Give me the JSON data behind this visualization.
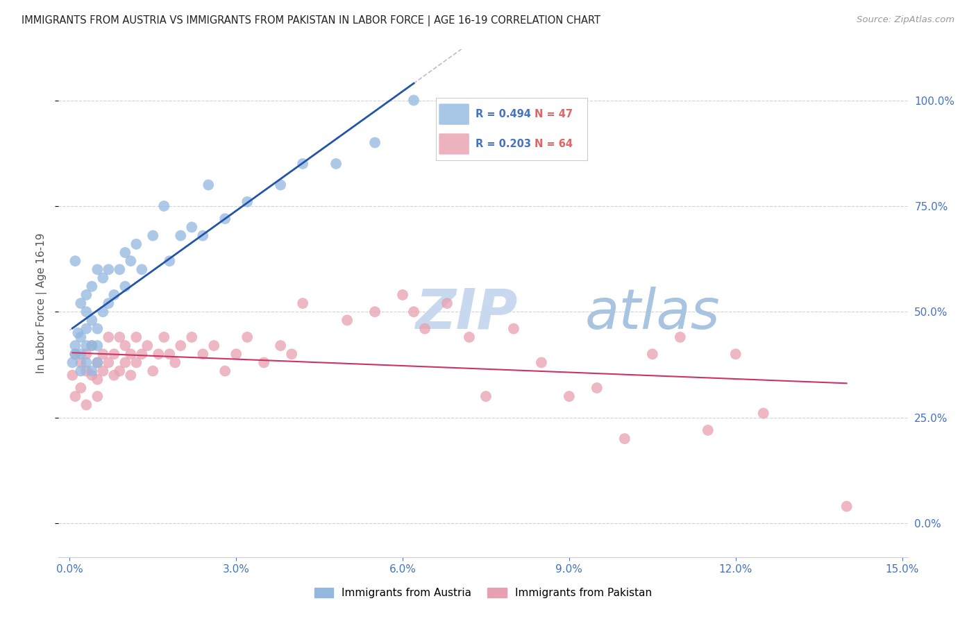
{
  "title": "IMMIGRANTS FROM AUSTRIA VS IMMIGRANTS FROM PAKISTAN IN LABOR FORCE | AGE 16-19 CORRELATION CHART",
  "source": "Source: ZipAtlas.com",
  "ylabel": "In Labor Force | Age 16-19",
  "xlim": [
    -0.002,
    0.151
  ],
  "ylim": [
    -0.08,
    1.12
  ],
  "xticks": [
    0.0,
    0.03,
    0.06,
    0.09,
    0.12,
    0.15
  ],
  "xtick_labels": [
    "0.0%",
    "3.0%",
    "6.0%",
    "9.0%",
    "12.0%",
    "15.0%"
  ],
  "yticks": [
    0.0,
    0.25,
    0.5,
    0.75,
    1.0
  ],
  "ytick_labels": [
    "0.0%",
    "25.0%",
    "50.0%",
    "75.0%",
    "100.0%"
  ],
  "austria_color": "#92b8e0",
  "pakistan_color": "#e8a0b0",
  "austria_label": "Immigrants from Austria",
  "pakistan_label": "Immigrants from Pakistan",
  "austria_R": 0.494,
  "austria_N": 47,
  "pakistan_R": 0.203,
  "pakistan_N": 64,
  "legend_color": "#4472c4",
  "legend_N_color": "#e06666",
  "austria_scatter_x": [
    0.0005,
    0.001,
    0.001,
    0.001,
    0.0015,
    0.002,
    0.002,
    0.002,
    0.002,
    0.003,
    0.003,
    0.003,
    0.003,
    0.003,
    0.004,
    0.004,
    0.004,
    0.004,
    0.005,
    0.005,
    0.005,
    0.005,
    0.006,
    0.006,
    0.007,
    0.007,
    0.008,
    0.009,
    0.01,
    0.01,
    0.011,
    0.012,
    0.013,
    0.015,
    0.017,
    0.018,
    0.02,
    0.022,
    0.024,
    0.025,
    0.028,
    0.032,
    0.038,
    0.042,
    0.048,
    0.055,
    0.062
  ],
  "austria_scatter_y": [
    0.38,
    0.4,
    0.42,
    0.62,
    0.45,
    0.36,
    0.4,
    0.44,
    0.52,
    0.38,
    0.42,
    0.46,
    0.5,
    0.54,
    0.36,
    0.42,
    0.48,
    0.56,
    0.38,
    0.42,
    0.46,
    0.6,
    0.5,
    0.58,
    0.52,
    0.6,
    0.54,
    0.6,
    0.56,
    0.64,
    0.62,
    0.66,
    0.6,
    0.68,
    0.75,
    0.62,
    0.68,
    0.7,
    0.68,
    0.8,
    0.72,
    0.76,
    0.8,
    0.85,
    0.85,
    0.9,
    1.0
  ],
  "pakistan_scatter_x": [
    0.0005,
    0.001,
    0.001,
    0.002,
    0.002,
    0.003,
    0.003,
    0.003,
    0.004,
    0.004,
    0.005,
    0.005,
    0.005,
    0.006,
    0.006,
    0.007,
    0.007,
    0.008,
    0.008,
    0.009,
    0.009,
    0.01,
    0.01,
    0.011,
    0.011,
    0.012,
    0.012,
    0.013,
    0.014,
    0.015,
    0.016,
    0.017,
    0.018,
    0.019,
    0.02,
    0.022,
    0.024,
    0.026,
    0.028,
    0.03,
    0.032,
    0.035,
    0.038,
    0.04,
    0.042,
    0.05,
    0.055,
    0.06,
    0.062,
    0.064,
    0.068,
    0.072,
    0.075,
    0.08,
    0.085,
    0.09,
    0.095,
    0.1,
    0.105,
    0.11,
    0.115,
    0.12,
    0.125,
    0.14
  ],
  "pakistan_scatter_y": [
    0.35,
    0.3,
    0.4,
    0.38,
    0.32,
    0.36,
    0.4,
    0.28,
    0.35,
    0.42,
    0.38,
    0.34,
    0.3,
    0.36,
    0.4,
    0.38,
    0.44,
    0.35,
    0.4,
    0.36,
    0.44,
    0.38,
    0.42,
    0.35,
    0.4,
    0.38,
    0.44,
    0.4,
    0.42,
    0.36,
    0.4,
    0.44,
    0.4,
    0.38,
    0.42,
    0.44,
    0.4,
    0.42,
    0.36,
    0.4,
    0.44,
    0.38,
    0.42,
    0.4,
    0.52,
    0.48,
    0.5,
    0.54,
    0.5,
    0.46,
    0.52,
    0.44,
    0.3,
    0.46,
    0.38,
    0.3,
    0.32,
    0.2,
    0.4,
    0.44,
    0.22,
    0.4,
    0.26,
    0.04
  ],
  "background_color": "#ffffff",
  "grid_color": "#cccccc",
  "tick_color": "#4472c4",
  "watermark_zip": "ZIP",
  "watermark_atlas": "atlas",
  "watermark_color_zip": "#c8d8ee",
  "watermark_color_atlas": "#a8c4e0",
  "austria_line_color": "#2255aa",
  "pakistan_line_color": "#cc3366",
  "dashed_line_color": "#aaaacc"
}
